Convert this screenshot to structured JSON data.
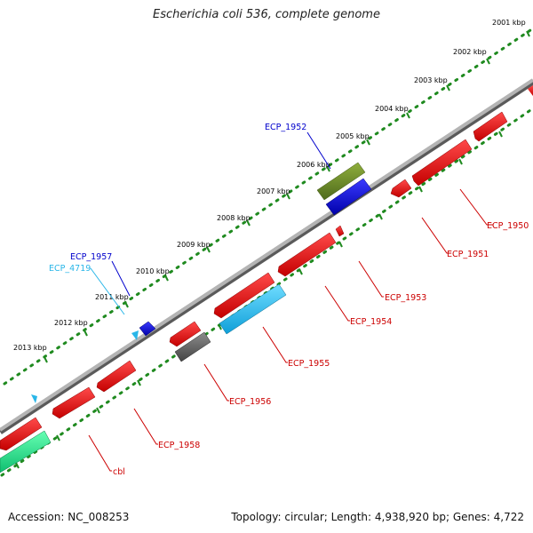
{
  "title": "Escherichia coli 536, complete genome",
  "footer": {
    "accession": "Accession: NC_008253",
    "topology": "Topology: circular; Length: 4,938,920 bp; Genes: 4,722"
  },
  "colors": {
    "backbone": "#8a8a8a",
    "tick_dots": "#1f8a1f",
    "forward_label": "#0000cc",
    "reverse_label": "#cc0000",
    "cyan_label": "#29b6e8"
  },
  "kbp_labels": [
    "2001 kbp",
    "2002 kbp",
    "2003 kbp",
    "2004 kbp",
    "2005 kbp",
    "2006 kbp",
    "2007 kbp",
    "2008 kbp",
    "2009 kbp",
    "2010 kbp",
    "2011 kbp",
    "2012 kbp",
    "2013 kbp"
  ],
  "gene_labels": {
    "ecp_1952": "ECP_1952",
    "ecp_1957": "ECP_1957",
    "ecp_4719": "ECP_4719",
    "ecp_1950": "ECP_1950",
    "ecp_1951": "ECP_1951",
    "ecp_1953": "ECP_1953",
    "ecp_1954": "ECP_1954",
    "ecp_1955": "ECP_1955",
    "ecp_1956": "ECP_1956",
    "ecp_1958": "ECP_1958",
    "cbl": "cbl"
  }
}
